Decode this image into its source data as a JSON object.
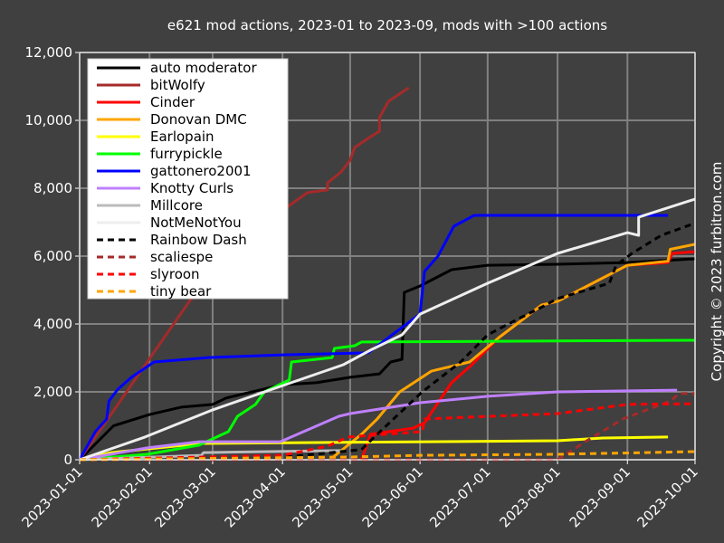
{
  "chart_data": {
    "type": "line",
    "title": "e621 mod actions, 2023-01 to 2023-09, mods with >100 actions",
    "xlabel": "",
    "ylabel": "",
    "xlim": [
      "2023-01-01",
      "2023-10-01"
    ],
    "ylim": [
      0,
      12000
    ],
    "x_ticks": [
      "2023-01-01",
      "2023-02-01",
      "2023-03-01",
      "2023-04-01",
      "2023-05-01",
      "2023-06-01",
      "2023-07-01",
      "2023-08-01",
      "2023-09-01",
      "2023-10-01"
    ],
    "y_ticks": [
      0,
      2000,
      4000,
      6000,
      8000,
      10000,
      12000
    ],
    "y_tick_labels": [
      "0",
      "2,000",
      "4,000",
      "6,000",
      "8,000",
      "10,000",
      "12,000"
    ],
    "grid": true,
    "legend_position": "top-left",
    "background": "#404040",
    "grid_color": "#808080",
    "series": [
      {
        "name": "auto moderator",
        "color": "#000000",
        "dash": false,
        "points": [
          [
            "2023-01-01",
            0
          ],
          [
            "2023-01-16",
            1000
          ],
          [
            "2023-02-01",
            1330
          ],
          [
            "2023-02-15",
            1550
          ],
          [
            "2023-03-01",
            1630
          ],
          [
            "2023-03-07",
            1820
          ],
          [
            "2023-04-01",
            2210
          ],
          [
            "2023-04-16",
            2270
          ],
          [
            "2023-05-01",
            2430
          ],
          [
            "2023-05-14",
            2530
          ],
          [
            "2023-05-19",
            2880
          ],
          [
            "2023-05-24",
            2960
          ],
          [
            "2023-05-25",
            4930
          ],
          [
            "2023-06-01",
            5120
          ],
          [
            "2023-06-15",
            5600
          ],
          [
            "2023-07-01",
            5730
          ],
          [
            "2023-08-01",
            5760
          ],
          [
            "2023-09-01",
            5810
          ],
          [
            "2023-10-01",
            5920
          ]
        ]
      },
      {
        "name": "bitWolfy",
        "color": "#a52a2a",
        "dash": false,
        "points": [
          [
            "2023-01-01",
            0
          ],
          [
            "2023-01-31",
            2880
          ],
          [
            "2023-02-19",
            4700
          ],
          [
            "2023-04-04",
            7490
          ],
          [
            "2023-04-12",
            7870
          ],
          [
            "2023-04-21",
            7950
          ],
          [
            "2023-04-21",
            8160
          ],
          [
            "2023-04-27",
            8480
          ],
          [
            "2023-05-01",
            8830
          ],
          [
            "2023-05-03",
            9200
          ],
          [
            "2023-05-09",
            9470
          ],
          [
            "2023-05-14",
            9680
          ],
          [
            "2023-05-14",
            10080
          ],
          [
            "2023-05-18",
            10560
          ],
          [
            "2023-05-27",
            10960
          ]
        ]
      },
      {
        "name": "Cinder",
        "color": "#ff0000",
        "dash": false,
        "points": [
          [
            "2023-05-06",
            0
          ],
          [
            "2023-05-10",
            750
          ],
          [
            "2023-05-29",
            930
          ],
          [
            "2023-06-03",
            1090
          ],
          [
            "2023-06-15",
            2270
          ],
          [
            "2023-06-24",
            2800
          ],
          [
            "2023-07-06",
            3600
          ],
          [
            "2023-07-25",
            4560
          ],
          [
            "2023-08-01",
            4670
          ],
          [
            "2023-09-01",
            5730
          ],
          [
            "2023-09-19",
            5810
          ],
          [
            "2023-09-21",
            6080
          ],
          [
            "2023-10-01",
            6130
          ]
        ]
      },
      {
        "name": "Donovan DMC",
        "color": "#ffa500",
        "dash": false,
        "points": [
          [
            "2023-04-22",
            0
          ],
          [
            "2023-05-06",
            750
          ],
          [
            "2023-05-13",
            1200
          ],
          [
            "2023-05-23",
            2000
          ],
          [
            "2023-06-06",
            2610
          ],
          [
            "2023-06-23",
            2880
          ],
          [
            "2023-07-06",
            3600
          ],
          [
            "2023-07-25",
            4560
          ],
          [
            "2023-08-01",
            4670
          ],
          [
            "2023-09-01",
            5730
          ],
          [
            "2023-09-19",
            5850
          ],
          [
            "2023-09-20",
            6200
          ],
          [
            "2023-10-01",
            6350
          ]
        ]
      },
      {
        "name": "Earlopain",
        "color": "#ffff00",
        "dash": false,
        "points": [
          [
            "2023-01-01",
            0
          ],
          [
            "2023-01-15",
            210
          ],
          [
            "2023-02-24",
            480
          ],
          [
            "2023-08-01",
            560
          ],
          [
            "2023-08-21",
            640
          ],
          [
            "2023-09-19",
            670
          ]
        ]
      },
      {
        "name": "furrypickle",
        "color": "#00ff00",
        "dash": false,
        "points": [
          [
            "2023-01-01",
            0
          ],
          [
            "2023-01-31",
            160
          ],
          [
            "2023-02-23",
            430
          ],
          [
            "2023-03-08",
            830
          ],
          [
            "2023-03-12",
            1280
          ],
          [
            "2023-03-20",
            1630
          ],
          [
            "2023-03-24",
            2000
          ],
          [
            "2023-04-04",
            2350
          ],
          [
            "2023-04-05",
            2880
          ],
          [
            "2023-04-23",
            3010
          ],
          [
            "2023-04-24",
            3280
          ],
          [
            "2023-05-03",
            3360
          ],
          [
            "2023-05-06",
            3470
          ],
          [
            "2023-10-01",
            3520
          ]
        ]
      },
      {
        "name": "gattonero2001",
        "color": "#0000ff",
        "dash": false,
        "points": [
          [
            "2023-01-01",
            0
          ],
          [
            "2023-01-08",
            830
          ],
          [
            "2023-01-13",
            1200
          ],
          [
            "2023-01-14",
            1730
          ],
          [
            "2023-01-18",
            2080
          ],
          [
            "2023-01-24",
            2430
          ],
          [
            "2023-02-03",
            2880
          ],
          [
            "2023-02-27",
            3010
          ],
          [
            "2023-04-01",
            3090
          ],
          [
            "2023-05-09",
            3150
          ],
          [
            "2023-05-25",
            3950
          ],
          [
            "2023-06-01",
            4290
          ],
          [
            "2023-06-03",
            5550
          ],
          [
            "2023-06-09",
            6000
          ],
          [
            "2023-06-16",
            6880
          ],
          [
            "2023-06-25",
            7200
          ],
          [
            "2023-09-19",
            7200
          ]
        ]
      },
      {
        "name": "Knotty Curls",
        "color": "#bf80ff",
        "dash": false,
        "points": [
          [
            "2023-01-01",
            0
          ],
          [
            "2023-01-31",
            350
          ],
          [
            "2023-02-23",
            530
          ],
          [
            "2023-03-31",
            530
          ],
          [
            "2023-04-26",
            1280
          ],
          [
            "2023-05-01",
            1360
          ],
          [
            "2023-06-01",
            1680
          ],
          [
            "2023-07-01",
            1870
          ],
          [
            "2023-08-01",
            2000
          ],
          [
            "2023-09-23",
            2050
          ]
        ]
      },
      {
        "name": "Millcore",
        "color": "#bbbbbb",
        "dash": false,
        "points": [
          [
            "2023-01-01",
            0
          ],
          [
            "2023-02-24",
            130
          ],
          [
            "2023-02-25",
            210
          ],
          [
            "2023-04-27",
            270
          ]
        ]
      },
      {
        "name": "NotMeNotYou",
        "color": "#eeeeee",
        "dash": false,
        "points": [
          [
            "2023-01-01",
            0
          ],
          [
            "2023-01-30",
            670
          ],
          [
            "2023-03-01",
            1470
          ],
          [
            "2023-03-31",
            2160
          ],
          [
            "2023-04-28",
            2800
          ],
          [
            "2023-05-10",
            3230
          ],
          [
            "2023-05-24",
            3680
          ],
          [
            "2023-06-01",
            4290
          ],
          [
            "2023-07-01",
            5200
          ],
          [
            "2023-08-01",
            6080
          ],
          [
            "2023-09-01",
            6690
          ],
          [
            "2023-09-06",
            6610
          ],
          [
            "2023-09-06",
            7150
          ],
          [
            "2023-10-01",
            7680
          ]
        ]
      },
      {
        "name": "Rainbow Dash",
        "color": "#000000",
        "dash": true,
        "points": [
          [
            "2023-01-01",
            0
          ],
          [
            "2023-04-03",
            80
          ],
          [
            "2023-05-06",
            300
          ],
          [
            "2023-05-13",
            750
          ],
          [
            "2023-06-02",
            2000
          ],
          [
            "2023-06-19",
            2880
          ],
          [
            "2023-07-01",
            3680
          ],
          [
            "2023-07-14",
            4130
          ],
          [
            "2023-07-26",
            4530
          ],
          [
            "2023-08-01",
            4750
          ],
          [
            "2023-08-24",
            5200
          ],
          [
            "2023-08-27",
            5730
          ],
          [
            "2023-09-03",
            6080
          ],
          [
            "2023-09-16",
            6610
          ],
          [
            "2023-10-01",
            6970
          ]
        ]
      },
      {
        "name": "scaliespe",
        "color": "#a52a2a",
        "dash": true,
        "points": [
          [
            "2023-01-01",
            0
          ],
          [
            "2023-08-01",
            0
          ],
          [
            "2023-08-14",
            560
          ],
          [
            "2023-08-30",
            1200
          ],
          [
            "2023-09-20",
            1730
          ],
          [
            "2023-09-24",
            1950
          ],
          [
            "2023-10-01",
            1950
          ]
        ]
      },
      {
        "name": "slyroon",
        "color": "#ff0000",
        "dash": true,
        "points": [
          [
            "2023-01-01",
            0
          ],
          [
            "2023-04-01",
            130
          ],
          [
            "2023-04-21",
            400
          ],
          [
            "2023-04-30",
            670
          ],
          [
            "2023-06-02",
            830
          ],
          [
            "2023-06-03",
            1200
          ],
          [
            "2023-08-01",
            1360
          ],
          [
            "2023-09-01",
            1630
          ],
          [
            "2023-10-01",
            1650
          ]
        ]
      },
      {
        "name": "tiny bear",
        "color": "#ffa500",
        "dash": true,
        "points": [
          [
            "2023-01-01",
            0
          ],
          [
            "2023-05-01",
            80
          ],
          [
            "2023-06-01",
            130
          ],
          [
            "2023-08-01",
            160
          ],
          [
            "2023-10-01",
            240
          ]
        ]
      }
    ]
  },
  "copyright": "Copyright © 2023 furbitron.com"
}
